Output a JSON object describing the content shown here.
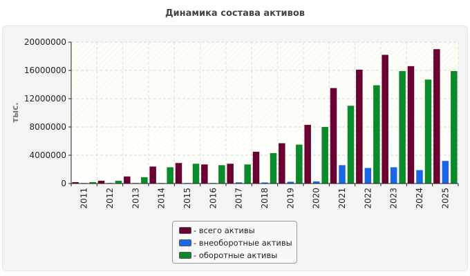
{
  "chart_data": {
    "type": "bar",
    "title": "Динамика состава активов",
    "ylabel": "тыс.",
    "categories": [
      "2011",
      "2012",
      "2013",
      "2014",
      "2015",
      "2016",
      "2017",
      "2018",
      "2019",
      "2020",
      "2021",
      "2022",
      "2023",
      "2024",
      "2025"
    ],
    "ylim": [
      0,
      20000000
    ],
    "yticks": [
      "0",
      "4000000",
      "8000000",
      "12000000",
      "16000000",
      "20000000"
    ],
    "legend_position": "bottom-center",
    "grid": true,
    "series": [
      {
        "name": "- всего активы",
        "color": "#6b0033",
        "values": [
          200000,
          400000,
          1000000,
          2400000,
          2900000,
          2700000,
          2800000,
          4500000,
          5700000,
          8300000,
          13500000,
          16100000,
          18200000,
          16600000,
          19000000
        ]
      },
      {
        "name": "- внеоборотные активы",
        "color": "#1a66e6",
        "values": [
          50000,
          30000,
          30000,
          50000,
          60000,
          60000,
          170000,
          150000,
          250000,
          300000,
          2600000,
          2200000,
          2300000,
          1900000,
          3200000
        ]
      },
      {
        "name": "- оборотные активы",
        "color": "#0a8a2a",
        "values": [
          200000,
          400000,
          900000,
          2300000,
          2800000,
          2600000,
          2700000,
          4300000,
          5500000,
          8000000,
          11000000,
          13900000,
          15900000,
          14700000,
          15900000
        ]
      }
    ]
  }
}
